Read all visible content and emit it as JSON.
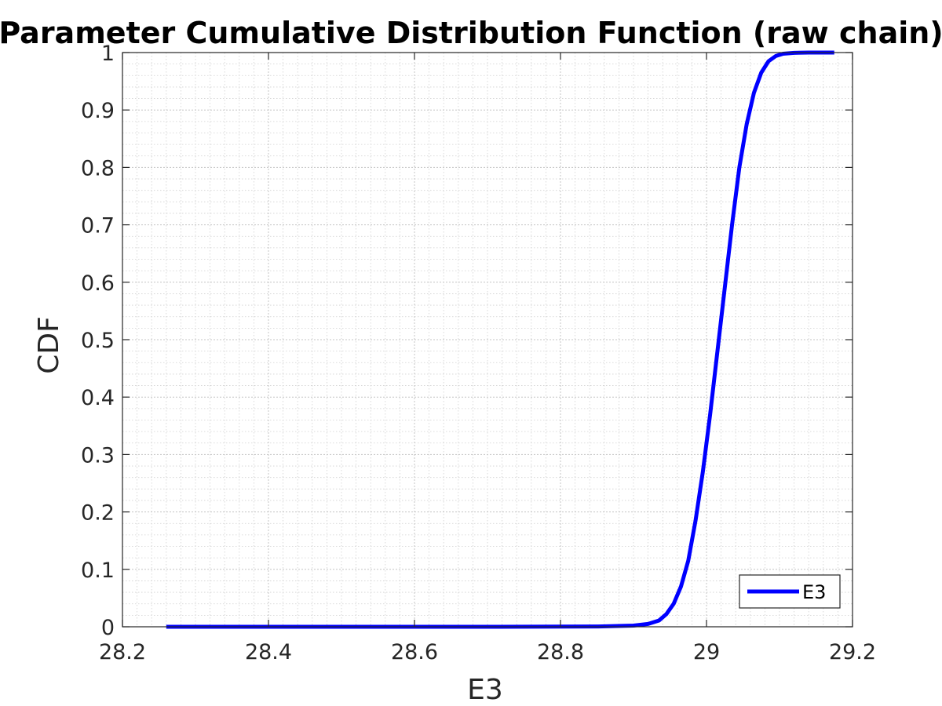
{
  "chart_data": {
    "type": "line",
    "title": "Parameter Cumulative Distribution Function (raw chain)",
    "xlabel": "E3",
    "ylabel": "CDF",
    "xlim": [
      28.2,
      29.2
    ],
    "ylim": [
      0,
      1
    ],
    "xticks": [
      "28.2",
      "28.4",
      "28.6",
      "28.8",
      "29",
      "29.2"
    ],
    "yticks": [
      "0",
      "0.1",
      "0.2",
      "0.3",
      "0.4",
      "0.5",
      "0.6",
      "0.7",
      "0.8",
      "0.9",
      "1"
    ],
    "grid": true,
    "minor_grid": true,
    "legend": {
      "position": "bottom-right",
      "entries": [
        "E3"
      ]
    },
    "series": [
      {
        "name": "E3",
        "color": "#0000ff",
        "x": [
          28.26,
          28.5,
          28.7,
          28.85,
          28.9,
          28.92,
          28.935,
          28.945,
          28.955,
          28.965,
          28.975,
          28.985,
          28.995,
          29.005,
          29.015,
          29.025,
          29.035,
          29.045,
          29.055,
          29.065,
          29.075,
          29.085,
          29.095,
          29.105,
          29.12,
          29.14,
          29.175
        ],
        "y": [
          0,
          0,
          0,
          0.0005,
          0.002,
          0.005,
          0.011,
          0.022,
          0.04,
          0.07,
          0.115,
          0.185,
          0.27,
          0.37,
          0.48,
          0.59,
          0.7,
          0.8,
          0.875,
          0.93,
          0.965,
          0.985,
          0.994,
          0.998,
          0.9995,
          1,
          1
        ]
      }
    ]
  }
}
